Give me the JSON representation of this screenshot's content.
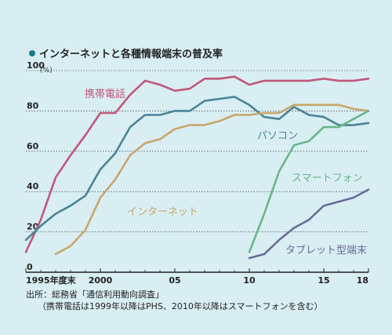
{
  "chart_data": {
    "type": "line",
    "title": "インターネットと各種情報端末の普及率",
    "ylabel_unit": "(%)",
    "ylim": [
      0,
      100
    ],
    "yticks": [
      0,
      20,
      40,
      60,
      80,
      100
    ],
    "xlim": [
      1995,
      2018
    ],
    "xticks": [
      {
        "x": 1995,
        "label": "1995年度末"
      },
      {
        "x": 2000,
        "label": "2000"
      },
      {
        "x": 2005,
        "label": "05"
      },
      {
        "x": 2010,
        "label": "10"
      },
      {
        "x": 2015,
        "label": "15"
      },
      {
        "x": 2018,
        "label": "18"
      }
    ],
    "grid": true,
    "series": [
      {
        "name": "携帯電話",
        "color": "#c0577c",
        "x": [
          1995,
          1996,
          1997,
          1998,
          1999,
          2000,
          2001,
          2002,
          2003,
          2004,
          2005,
          2006,
          2007,
          2008,
          2009,
          2010,
          2011,
          2012,
          2013,
          2014,
          2015,
          2016,
          2017,
          2018
        ],
        "values": [
          10,
          26,
          47,
          58,
          68,
          79,
          79,
          88,
          95,
          93,
          90,
          91,
          96,
          96,
          97,
          93,
          95,
          95,
          95,
          95,
          96,
          95,
          95,
          96
        ]
      },
      {
        "name": "パソコン",
        "color": "#4a8497",
        "x": [
          1995,
          1996,
          1997,
          1998,
          1999,
          2000,
          2001,
          2002,
          2003,
          2004,
          2005,
          2006,
          2007,
          2008,
          2009,
          2010,
          2011,
          2012,
          2013,
          2014,
          2015,
          2016,
          2017,
          2018
        ],
        "values": [
          16,
          23,
          29,
          33,
          38,
          51,
          59,
          72,
          78,
          78,
          80,
          80,
          85,
          86,
          87,
          83,
          77,
          76,
          82,
          78,
          77,
          73,
          73,
          74
        ]
      },
      {
        "name": "インターネット",
        "color": "#c8a66a",
        "x": [
          1997,
          1998,
          1999,
          2000,
          2001,
          2002,
          2003,
          2004,
          2005,
          2006,
          2007,
          2008,
          2009,
          2010,
          2011,
          2012,
          2013,
          2014,
          2015,
          2016,
          2017,
          2018
        ],
        "values": [
          9,
          13,
          21,
          37,
          46,
          58,
          64,
          66,
          71,
          73,
          73,
          75,
          78,
          78,
          79,
          79,
          83,
          83,
          83,
          83,
          81,
          80
        ]
      },
      {
        "name": "スマートフォン",
        "color": "#6ab58c",
        "x": [
          2010,
          2011,
          2012,
          2013,
          2014,
          2015,
          2016,
          2017,
          2018
        ],
        "values": [
          10,
          29,
          50,
          63,
          65,
          72,
          72,
          76,
          80
        ]
      },
      {
        "name": "タブレット型端末",
        "color": "#6a6a9a",
        "x": [
          2010,
          2011,
          2012,
          2013,
          2014,
          2015,
          2016,
          2017,
          2018
        ],
        "values": [
          7,
          9,
          16,
          22,
          26,
          33,
          35,
          37,
          41
        ]
      }
    ]
  },
  "notes": {
    "source": "出所：総務省「通信利用動向調査」",
    "footnote": "（携帯電話は1999年以降はPHS、2010年以降はスマートフォンを含む）"
  }
}
